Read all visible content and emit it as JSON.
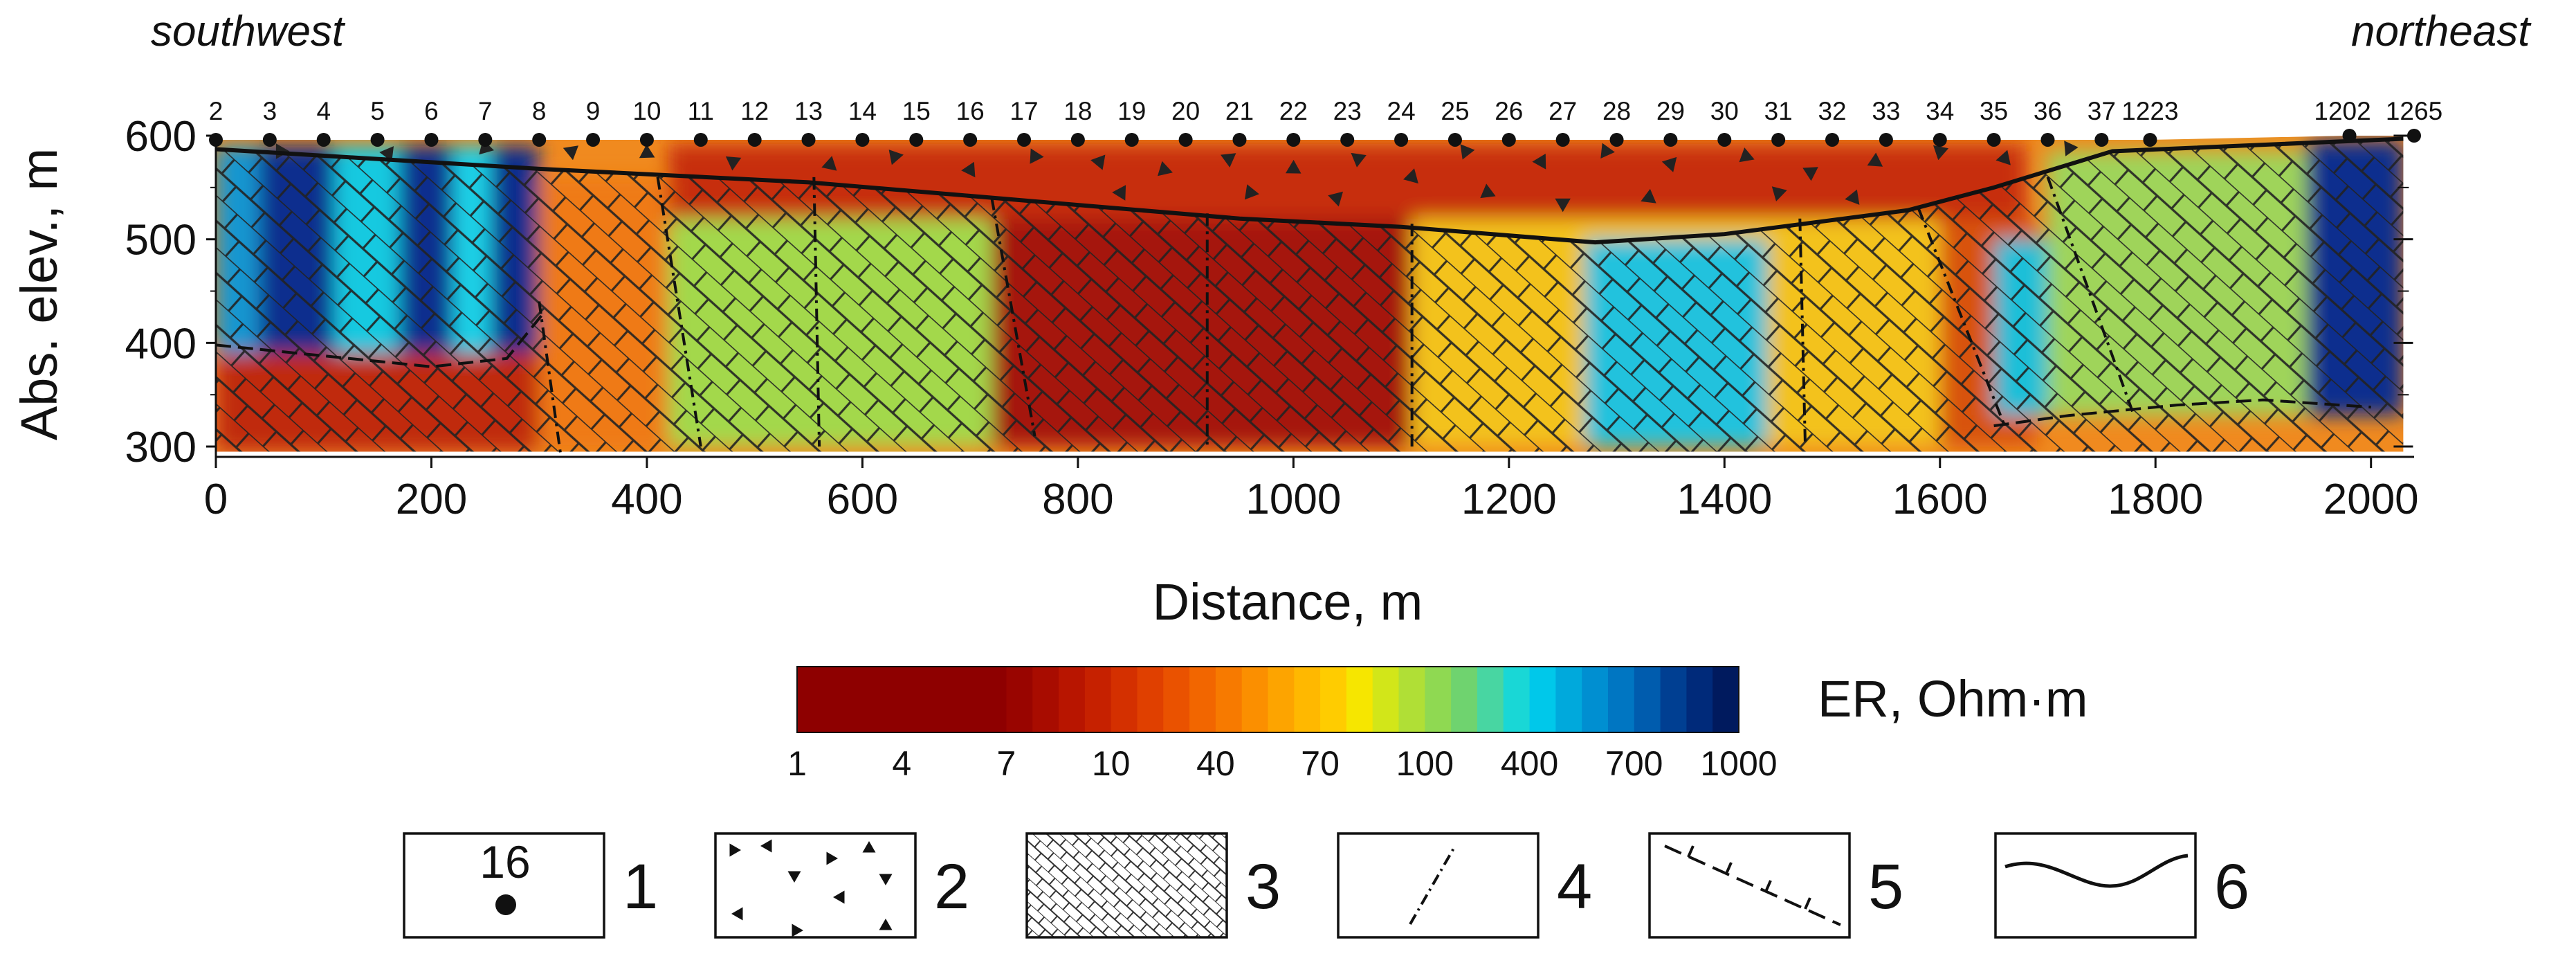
{
  "figure": {
    "left_label": "southwest",
    "right_label": "northeast"
  },
  "chart_data": {
    "type": "heatmap",
    "title": "",
    "xlabel": "Distance, m",
    "ylabel": "Abs. elev., m",
    "xlim": [
      0,
      2040
    ],
    "ylim": [
      290,
      600
    ],
    "xticks": [
      0,
      200,
      400,
      600,
      800,
      1000,
      1200,
      1400,
      1600,
      1800,
      2000
    ],
    "yticks": [
      300,
      400,
      500,
      600
    ],
    "electrodes": [
      {
        "label": "2",
        "x": 0
      },
      {
        "label": "3",
        "x": 50
      },
      {
        "label": "4",
        "x": 100
      },
      {
        "label": "5",
        "x": 150
      },
      {
        "label": "6",
        "x": 200
      },
      {
        "label": "7",
        "x": 250
      },
      {
        "label": "8",
        "x": 300
      },
      {
        "label": "9",
        "x": 350
      },
      {
        "label": "10",
        "x": 400
      },
      {
        "label": "11",
        "x": 450
      },
      {
        "label": "12",
        "x": 500
      },
      {
        "label": "13",
        "x": 550
      },
      {
        "label": "14",
        "x": 600
      },
      {
        "label": "15",
        "x": 650
      },
      {
        "label": "16",
        "x": 700
      },
      {
        "label": "17",
        "x": 750
      },
      {
        "label": "18",
        "x": 800
      },
      {
        "label": "19",
        "x": 850
      },
      {
        "label": "20",
        "x": 900
      },
      {
        "label": "21",
        "x": 950
      },
      {
        "label": "22",
        "x": 1000
      },
      {
        "label": "23",
        "x": 1050
      },
      {
        "label": "24",
        "x": 1100
      },
      {
        "label": "25",
        "x": 1150
      },
      {
        "label": "26",
        "x": 1200
      },
      {
        "label": "27",
        "x": 1250
      },
      {
        "label": "28",
        "x": 1300
      },
      {
        "label": "29",
        "x": 1350
      },
      {
        "label": "30",
        "x": 1400
      },
      {
        "label": "31",
        "x": 1450
      },
      {
        "label": "32",
        "x": 1500
      },
      {
        "label": "33",
        "x": 1550
      },
      {
        "label": "34",
        "x": 1600
      },
      {
        "label": "35",
        "x": 1650
      },
      {
        "label": "36",
        "x": 1700
      },
      {
        "label": "37",
        "x": 1750
      },
      {
        "label": "1223",
        "x": 1795
      },
      {
        "label": "1202",
        "x": 1980
      },
      {
        "label": "1265",
        "x": 2040
      }
    ],
    "colorbar": {
      "label": "ER, Ohm·m",
      "tick_labels": [
        "1",
        "4",
        "7",
        "10",
        "40",
        "70",
        "100",
        "400",
        "700",
        "1000"
      ],
      "colors": [
        "#8e0000",
        "#8e0000",
        "#8e0000",
        "#8e0000",
        "#8e0000",
        "#8e0000",
        "#8e0000",
        "#8e0000",
        "#990500",
        "#a80c00",
        "#b81500",
        "#c62100",
        "#d43000",
        "#e04000",
        "#ea5200",
        "#f26600",
        "#f77a00",
        "#fb8f00",
        "#fda400",
        "#ffb800",
        "#ffcc00",
        "#f6e600",
        "#d2e619",
        "#b0df36",
        "#8fd952",
        "#6fd36f",
        "#48d6a2",
        "#19d7d6",
        "#00c8ea",
        "#00a9dc",
        "#008fd1",
        "#0076c2",
        "#005cae",
        "#003f92",
        "#002a7a",
        "#001a5e"
      ]
    },
    "zones": [
      {
        "value": 1000,
        "x": [
          0,
          300
        ],
        "z": [
          390,
          590
        ],
        "color": "#0c2f8e"
      },
      {
        "value": 300,
        "x": [
          0,
          40
        ],
        "z": [
          390,
          590
        ],
        "color": "#1896d0"
      },
      {
        "value": 450,
        "x": [
          110,
          170
        ],
        "z": [
          390,
          590
        ],
        "color": "#16c9e0"
      },
      {
        "value": 450,
        "x": [
          220,
          255
        ],
        "z": [
          390,
          590
        ],
        "color": "#1ed0e6"
      },
      {
        "value": 25,
        "x": [
          0,
          300
        ],
        "z": [
          295,
          390
        ],
        "color": "#c02a0c"
      },
      {
        "value": 60,
        "x": [
          300,
          720
        ],
        "z": [
          295,
          560
        ],
        "color": "#ef7a12"
      },
      {
        "value": 150,
        "x": [
          420,
          730
        ],
        "z": [
          300,
          540
        ],
        "color": "#a3d84b"
      },
      {
        "value": 8,
        "x": [
          720,
          1110
        ],
        "z": [
          300,
          525
        ],
        "color": "#a51909"
      },
      {
        "value": 90,
        "x": [
          1110,
          1600
        ],
        "z": [
          300,
          520
        ],
        "color": "#f3c21b"
      },
      {
        "value": 400,
        "x": [
          1270,
          1440
        ],
        "z": [
          300,
          500
        ],
        "color": "#22c2dd"
      },
      {
        "value": 30,
        "x": [
          1600,
          1690
        ],
        "z": [
          300,
          520
        ],
        "color": "#d8530f"
      },
      {
        "value": 400,
        "x": [
          1650,
          1740
        ],
        "z": [
          330,
          500
        ],
        "color": "#1bbfd8"
      },
      {
        "value": 120,
        "x": [
          1700,
          1940
        ],
        "z": [
          330,
          585
        ],
        "color": "#9fd45a"
      },
      {
        "value": 1000,
        "x": [
          1940,
          2030
        ],
        "z": [
          330,
          595
        ],
        "color": "#0c2f8e"
      },
      {
        "value": 15,
        "x": [
          420,
          1680
        ],
        "z": [
          520,
          592
        ],
        "color": "#c72e0a"
      }
    ],
    "boundary_top_x": [
      0,
      300,
      550,
      950,
      1100,
      1280,
      1400,
      1570,
      1650,
      1760,
      2030
    ],
    "boundary_top_z": [
      587,
      568,
      555,
      520,
      512,
      497,
      505,
      528,
      550,
      585,
      597
    ],
    "boundary_bottom_x": [
      0,
      200,
      270,
      305
    ],
    "boundary_bottom_z": [
      398,
      377,
      385,
      430
    ]
  },
  "legend": {
    "items": [
      {
        "number": "1",
        "symbol_text": "16"
      },
      {
        "number": "2",
        "symbol_text": ""
      },
      {
        "number": "3",
        "symbol_text": ""
      },
      {
        "number": "4",
        "symbol_text": ""
      },
      {
        "number": "5",
        "symbol_text": ""
      },
      {
        "number": "6",
        "symbol_text": ""
      }
    ]
  }
}
